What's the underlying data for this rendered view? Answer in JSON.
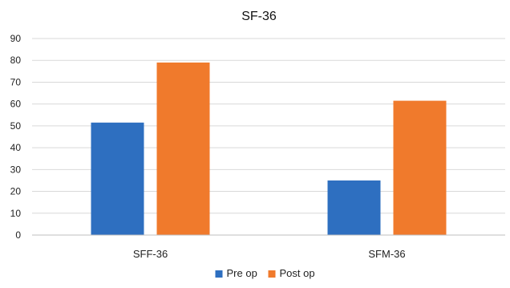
{
  "chart_data": {
    "type": "bar",
    "title": "SF-36",
    "categories": [
      "SFF-36",
      "SFM-36"
    ],
    "series": [
      {
        "name": "Pre op",
        "values": [
          51.5,
          25
        ],
        "color": "#2E6FC0"
      },
      {
        "name": "Post op",
        "values": [
          79,
          61.5
        ],
        "color": "#F07A2C"
      }
    ],
    "xlabel": "",
    "ylabel": "",
    "ylim": [
      0,
      90
    ],
    "yticks": [
      0,
      10,
      20,
      30,
      40,
      50,
      60,
      70,
      80,
      90
    ],
    "grid": true,
    "legend": "bottom-center"
  }
}
